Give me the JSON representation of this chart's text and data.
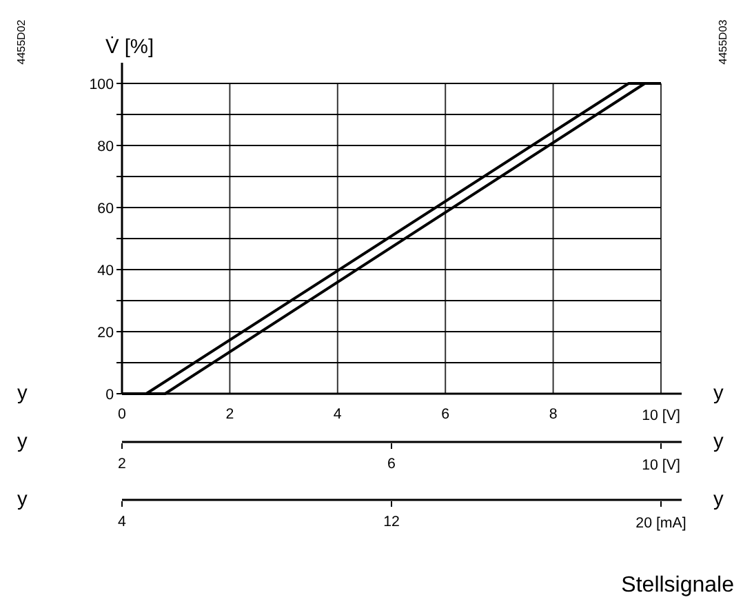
{
  "chart_data": {
    "type": "line",
    "xlabel": "y",
    "ylabel": "V̇ [%]",
    "xlim": [
      0,
      10
    ],
    "xticks": [
      0,
      2,
      4,
      6,
      8,
      {
        "value": 10,
        "label": "10 [V]"
      }
    ],
    "x2lim": [
      2,
      10
    ],
    "x2ticks": [
      2,
      6,
      {
        "value": 10,
        "label": "10 [V]"
      }
    ],
    "x2label": "y",
    "ylim": [
      0,
      100
    ],
    "yticks": [
      0,
      {
        "value": 10,
        "label": null
      },
      20,
      {
        "value": 30,
        "label": null
      },
      40,
      {
        "value": 50,
        "label": null
      },
      60,
      {
        "value": 70,
        "label": null
      },
      80,
      {
        "value": 90,
        "label": null
      },
      100
    ],
    "grid": true,
    "line_style": "solid",
    "marker": "none",
    "series": [
      {
        "color": "#000000",
        "x": [
          0,
          0.45,
          9.4,
          10
        ],
        "values": [
          0,
          0,
          100,
          100
        ]
      },
      {
        "color": "#000000",
        "x": [
          0,
          0.8,
          9.7,
          10
        ],
        "values": [
          0,
          0,
          100,
          100
        ]
      }
    ],
    "annotations": [
      "4455D02",
      "4455D03",
      "y",
      "y",
      "y",
      "y",
      "4",
      "12",
      "20 [mA]",
      "Stellsignale"
    ]
  }
}
